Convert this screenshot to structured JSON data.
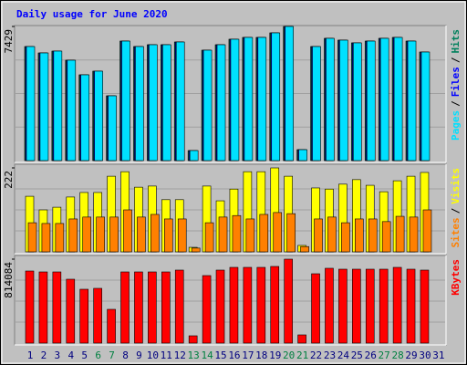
{
  "title": "Daily usage for June 2020",
  "legend_separator": "/",
  "chart_data": [
    {
      "type": "bar",
      "ylim": [
        0,
        7429
      ],
      "yticks": [
        7429
      ],
      "series": [
        {
          "name": "Hits",
          "color": "#00805c",
          "values": [
            6317,
            5963,
            6065,
            5559,
            4751,
            4953,
            3588,
            6620,
            6317,
            6418,
            6418,
            6570,
            556,
            6115,
            6418,
            6722,
            6823,
            6823,
            7075,
            7429,
            606,
            6317,
            6772,
            6671,
            6520,
            6620,
            6772,
            6823,
            6620,
            6014,
            null
          ]
        },
        {
          "name": "Files",
          "color": "#0000ff",
          "values": [
            6317,
            5963,
            6065,
            5559,
            4751,
            4953,
            3588,
            6620,
            6317,
            6418,
            6418,
            6570,
            556,
            6115,
            6418,
            6722,
            6823,
            6823,
            7075,
            7429,
            606,
            6317,
            6772,
            6671,
            6520,
            6620,
            6772,
            6823,
            6620,
            6014,
            null
          ]
        },
        {
          "name": "Pages",
          "color": "#00e0ff",
          "values": [
            6317,
            5963,
            6065,
            5559,
            4751,
            4953,
            3588,
            6620,
            6317,
            6418,
            6418,
            6570,
            556,
            6115,
            6418,
            6722,
            6823,
            6823,
            7075,
            7429,
            606,
            6317,
            6772,
            6671,
            6520,
            6620,
            6772,
            6823,
            6620,
            6014,
            null
          ]
        }
      ]
    },
    {
      "type": "bar",
      "ylim": [
        0,
        222
      ],
      "yticks": [
        222
      ],
      "series": [
        {
          "name": "Visits",
          "color": "#ffff00",
          "values": [
            147,
            111,
            118,
            145,
            157,
            157,
            200,
            212,
            171,
            174,
            138,
            138,
            12,
            174,
            135,
            166,
            212,
            212,
            222,
            200,
            17,
            169,
            166,
            179,
            191,
            176,
            159,
            188,
            200,
            210,
            null
          ]
        },
        {
          "name": "Sites",
          "color": "#ff8000",
          "values": [
            77,
            75,
            75,
            87,
            92,
            92,
            92,
            111,
            92,
            99,
            87,
            87,
            10,
            77,
            92,
            96,
            87,
            99,
            104,
            101,
            14,
            87,
            92,
            77,
            87,
            87,
            80,
            94,
            92,
            111,
            null
          ]
        }
      ]
    },
    {
      "type": "bar",
      "ylim": [
        0,
        814084
      ],
      "yticks": [
        814084
      ],
      "categories": [
        "1",
        "2",
        "3",
        "4",
        "5",
        "6",
        "7",
        "8",
        "9",
        "10",
        "11",
        "12",
        "13",
        "14",
        "15",
        "16",
        "17",
        "18",
        "19",
        "20",
        "21",
        "22",
        "23",
        "24",
        "25",
        "26",
        "27",
        "28",
        "29",
        "30",
        "31"
      ],
      "category_colors": [
        "#000080",
        "#000080",
        "#000080",
        "#000080",
        "#000080",
        "#008040",
        "#008040",
        "#000080",
        "#000080",
        "#000080",
        "#000080",
        "#000080",
        "#008040",
        "#008040",
        "#000080",
        "#000080",
        "#000080",
        "#000080",
        "#000080",
        "#008040",
        "#008040",
        "#000080",
        "#000080",
        "#000080",
        "#000080",
        "#000080",
        "#008040",
        "#008040",
        "#000080",
        "#000080",
        "#000080"
      ],
      "series": [
        {
          "name": "KBytes",
          "color": "#ff0000",
          "values": [
            699071,
            690222,
            690222,
            619430,
            522091,
            530940,
            327413,
            690222,
            690222,
            690222,
            690222,
            707920,
            70792,
            654826,
            707920,
            734467,
            734467,
            734467,
            743316,
            814084,
            79641,
            672524,
            725618,
            716769,
            716769,
            716769,
            716769,
            734467,
            716769,
            707920,
            null
          ]
        }
      ]
    }
  ]
}
